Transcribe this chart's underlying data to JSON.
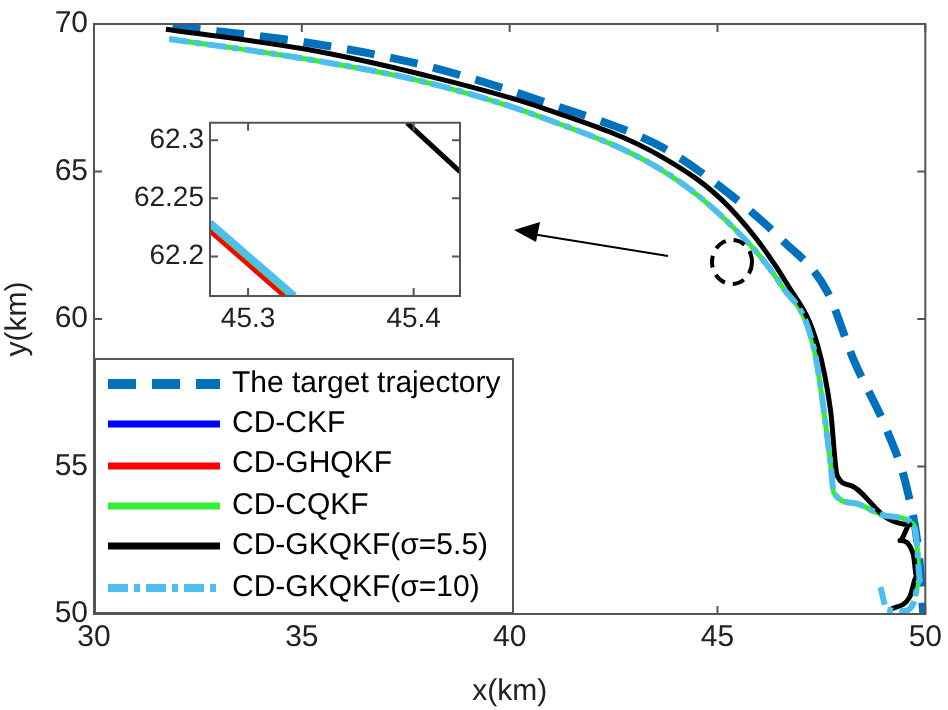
{
  "chart_data": [
    {
      "type": "line",
      "xlabel": "x(km)",
      "ylabel": "y(km)",
      "xlim": [
        30,
        50
      ],
      "ylim": [
        50,
        70
      ],
      "xticks": [
        30,
        35,
        40,
        45,
        50
      ],
      "yticks": [
        50,
        55,
        60,
        65,
        70
      ],
      "grid": false,
      "legend": "bottom left",
      "marker": "none",
      "series": [
        {
          "name": "The target trajectory",
          "color": "#0072bd",
          "line_style": "dashed",
          "x": [
            31.89,
            35.07,
            37.94,
            40.8,
            43.67,
            45.26,
            46.53,
            47.64,
            48.28,
            49.09,
            49.57,
            49.86,
            49.95
          ],
          "values": [
            69.93,
            69.38,
            68.6,
            67.37,
            65.82,
            64.27,
            62.71,
            60.93,
            58.6,
            56.18,
            54.18,
            51.8,
            50.0
          ]
        },
        {
          "name": "CD-CKF",
          "color": "#0000ff",
          "line_style": "solid"
        },
        {
          "name": "CD-GHQKF",
          "color": "#ff0000",
          "line_style": "solid"
        },
        {
          "name": "CD-CQKF",
          "color": "#33ee33",
          "line_style": "solid",
          "x": [
            31.81,
            35.07,
            37.94,
            40.8,
            43.67,
            45.26,
            46.53,
            47.33,
            47.72,
            47.8,
            48.28,
            49.08,
            49.71,
            49.79,
            49.87,
            49.75
          ],
          "values": [
            69.49,
            68.82,
            68.04,
            66.82,
            65.04,
            63.27,
            61.15,
            58.93,
            55.1,
            54.1,
            53.76,
            53.32,
            53.05,
            52.49,
            51.15,
            50.6
          ]
        },
        {
          "name": "CD-GKQKF(σ=5.5)",
          "color": "#000000",
          "line_style": "solid",
          "x": [
            31.73,
            35.07,
            37.94,
            40.8,
            43.67,
            45.26,
            46.69,
            47.41,
            47.72,
            47.88,
            48.2,
            49.08,
            49.63,
            49.39,
            49.71,
            49.79,
            49.63,
            49.16
          ],
          "values": [
            69.82,
            69.15,
            68.27,
            67.15,
            65.49,
            63.82,
            61.15,
            59.1,
            56.9,
            54.69,
            54.36,
            53.25,
            53.03,
            52.49,
            52.03,
            51.26,
            50.59,
            50.15
          ]
        },
        {
          "name": "CD-GKQKF(σ=10)",
          "color": "#4dbeee",
          "line_style": "dashed",
          "x": [
            31.81,
            35.07,
            37.94,
            40.8,
            43.67,
            45.26,
            46.53,
            47.33,
            47.72,
            47.8,
            48.28,
            49.08,
            49.71,
            49.79,
            49.87,
            49.71,
            49.45,
            49.08,
            48.92
          ],
          "values": [
            69.49,
            68.82,
            68.04,
            66.82,
            65.04,
            63.27,
            61.15,
            58.93,
            55.1,
            54.1,
            53.76,
            53.32,
            53.05,
            52.49,
            51.15,
            50.35,
            50.1,
            50.15,
            50.91
          ]
        }
      ]
    },
    {
      "type": "line",
      "xlim": [
        45.277,
        45.428
      ],
      "ylim": [
        62.166,
        62.315
      ],
      "xticks": [
        45.3,
        45.4
      ],
      "yticks": [
        62.2,
        62.25,
        62.3
      ],
      "grid": false,
      "legend": false,
      "marker": "none",
      "series": [
        {
          "color": "#ff0000",
          "line_style": "solid",
          "x": [
            45.277,
            45.322
          ],
          "values": [
            62.222,
            62.166
          ]
        },
        {
          "color": "#33ee33",
          "line_style": "solid",
          "x": [
            45.277,
            45.326
          ],
          "values": [
            62.227,
            62.166
          ]
        },
        {
          "color": "#4dbeee",
          "line_style": "solid",
          "x": [
            45.277,
            45.328
          ],
          "values": [
            62.229,
            62.166
          ]
        },
        {
          "color": "#000000",
          "line_style": "solid",
          "x": [
            45.396,
            45.428
          ],
          "values": [
            62.315,
            62.273
          ]
        }
      ]
    }
  ]
}
